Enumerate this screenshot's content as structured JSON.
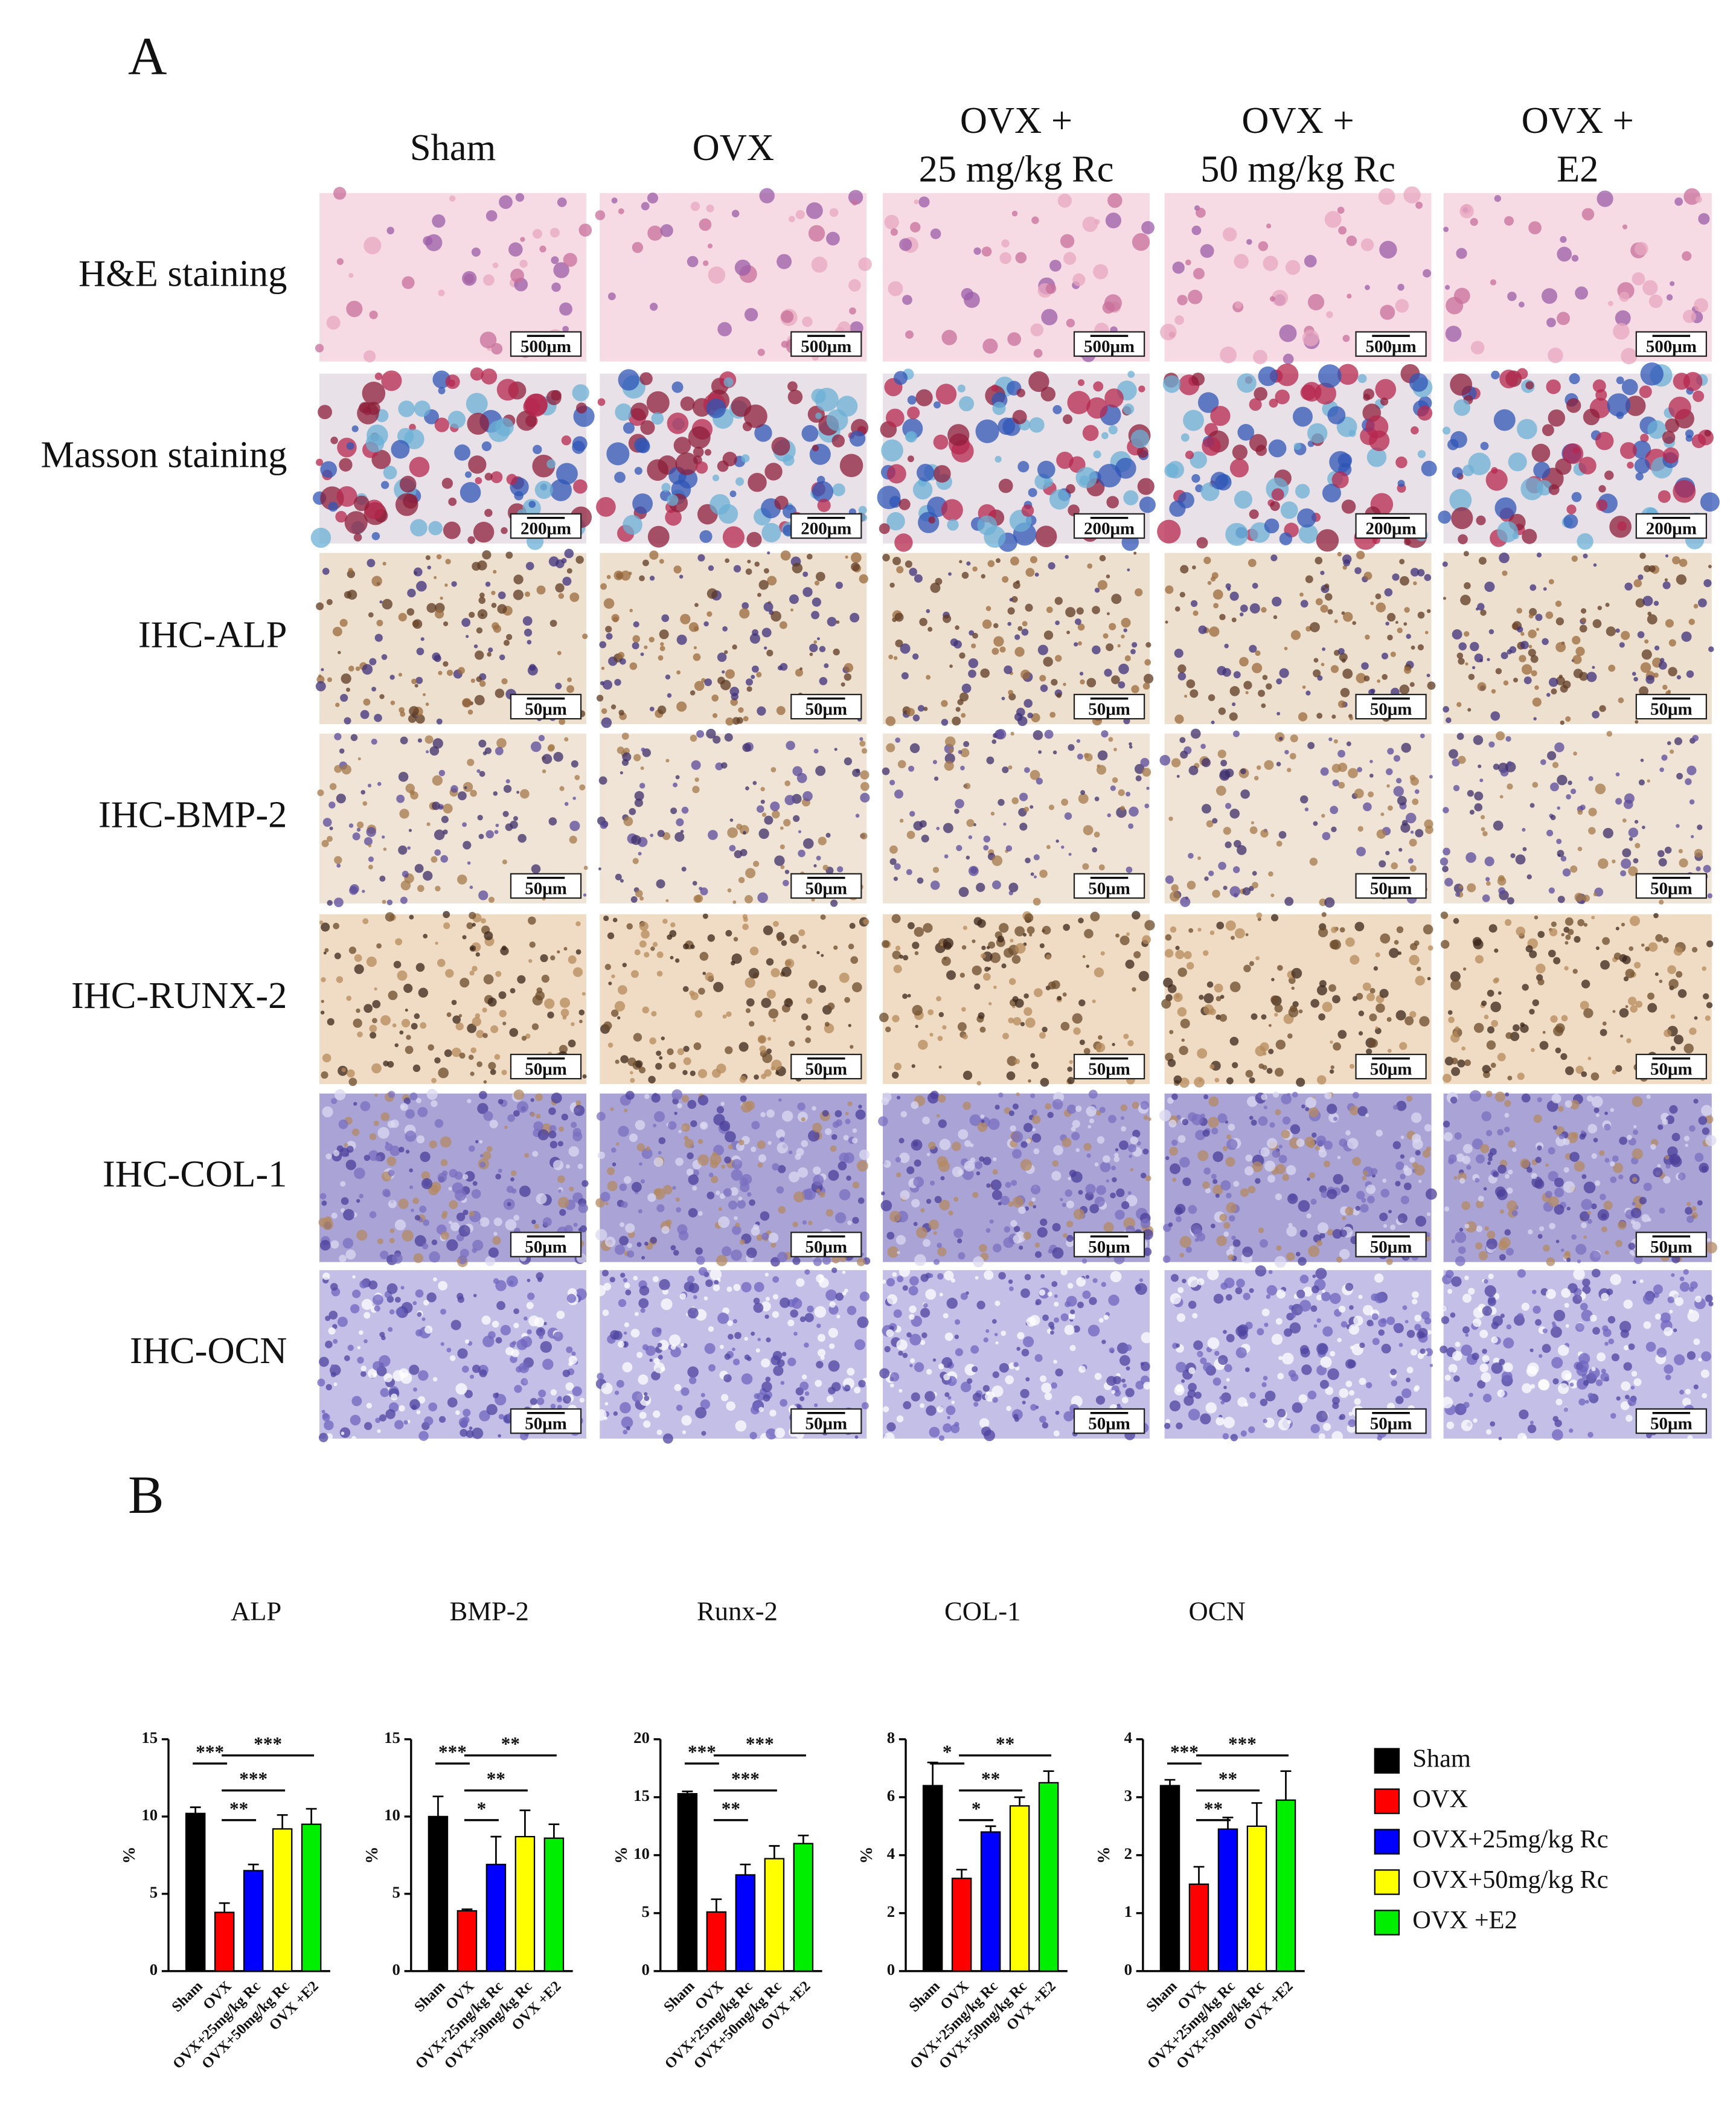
{
  "panel_a": {
    "label": "A",
    "columns": [
      [
        "Sham"
      ],
      [
        "OVX"
      ],
      [
        "OVX +",
        "25 mg/kg Rc"
      ],
      [
        "OVX +",
        "50 mg/kg Rc"
      ],
      [
        "OVX +",
        "E2"
      ]
    ],
    "rows": [
      {
        "label": "H&E staining",
        "scale_bar": "500μm"
      },
      {
        "label": "Masson staining",
        "scale_bar": "200μm"
      },
      {
        "label": "IHC-ALP",
        "scale_bar": "50μm"
      },
      {
        "label": "IHC-BMP-2",
        "scale_bar": "50μm"
      },
      {
        "label": "IHC-RUNX-2",
        "scale_bar": "50μm"
      },
      {
        "label": "IHC-COL-1",
        "scale_bar": "50μm"
      },
      {
        "label": "IHC-OCN",
        "scale_bar": "50μm"
      }
    ]
  },
  "panel_b": {
    "label": "B",
    "legend": [
      {
        "name": "Sham",
        "color": "#000000"
      },
      {
        "name": "OVX",
        "color": "#ff0000"
      },
      {
        "name": "OVX+25mg/kg Rc",
        "color": "#0000ff"
      },
      {
        "name": "OVX+50mg/kg Rc",
        "color": "#ffff00"
      },
      {
        "name": "OVX +E2",
        "color": "#00ee00"
      }
    ],
    "charts": [
      {
        "type": "bar",
        "title": "ALP",
        "y_label": "%",
        "categories": [
          "Sham",
          "OVX",
          "OVX+25mg/kg Rc",
          "OVX+50mg/kg Rc",
          "OVX +E2"
        ],
        "values": [
          10.2,
          3.8,
          6.5,
          9.2,
          9.5
        ],
        "errors": [
          0.4,
          0.6,
          0.4,
          0.9,
          1.0
        ],
        "ylim": [
          0,
          15
        ],
        "yticks": [
          0,
          5,
          10,
          15
        ],
        "significance": [
          {
            "label": "***",
            "between": [
              "Sham",
              "OVX"
            ]
          },
          {
            "label": "**",
            "between": [
              "OVX",
              "OVX+25mg/kg Rc"
            ]
          },
          {
            "label": "***",
            "between": [
              "OVX",
              "OVX+50mg/kg Rc"
            ]
          },
          {
            "label": "***",
            "between": [
              "OVX",
              "OVX +E2"
            ]
          }
        ]
      },
      {
        "type": "bar",
        "title": "BMP-2",
        "y_label": "%",
        "categories": [
          "Sham",
          "OVX",
          "OVX+25mg/kg Rc",
          "OVX+50mg/kg Rc",
          "OVX +E2"
        ],
        "values": [
          10.0,
          3.9,
          6.9,
          8.7,
          8.6
        ],
        "errors": [
          1.3,
          0.1,
          1.8,
          1.7,
          0.9
        ],
        "ylim": [
          0,
          15
        ],
        "yticks": [
          0,
          5,
          10,
          15
        ],
        "significance": [
          {
            "label": "***",
            "between": [
              "Sham",
              "OVX"
            ]
          },
          {
            "label": "*",
            "between": [
              "OVX",
              "OVX+25mg/kg Rc"
            ]
          },
          {
            "label": "**",
            "between": [
              "OVX",
              "OVX+50mg/kg Rc"
            ]
          },
          {
            "label": "**",
            "between": [
              "OVX",
              "OVX +E2"
            ]
          }
        ]
      },
      {
        "type": "bar",
        "title": "Runx-2",
        "y_label": "%",
        "categories": [
          "Sham",
          "OVX",
          "OVX+25mg/kg Rc",
          "OVX+50mg/kg Rc",
          "OVX +E2"
        ],
        "values": [
          15.3,
          5.1,
          8.3,
          9.7,
          11.0
        ],
        "errors": [
          0.2,
          1.1,
          0.9,
          1.1,
          0.7
        ],
        "ylim": [
          0,
          20
        ],
        "yticks": [
          0,
          5,
          10,
          15,
          20
        ],
        "significance": [
          {
            "label": "***",
            "between": [
              "Sham",
              "OVX"
            ]
          },
          {
            "label": "**",
            "between": [
              "OVX",
              "OVX+25mg/kg Rc"
            ]
          },
          {
            "label": "***",
            "between": [
              "OVX",
              "OVX+50mg/kg Rc"
            ]
          },
          {
            "label": "***",
            "between": [
              "OVX",
              "OVX +E2"
            ]
          }
        ]
      },
      {
        "type": "bar",
        "title": "COL-1",
        "y_label": "%",
        "categories": [
          "Sham",
          "OVX",
          "OVX+25mg/kg Rc",
          "OVX+50mg/kg Rc",
          "OVX +E2"
        ],
        "values": [
          6.4,
          3.2,
          4.8,
          5.7,
          6.5
        ],
        "errors": [
          0.8,
          0.3,
          0.2,
          0.3,
          0.4
        ],
        "ylim": [
          0,
          8
        ],
        "yticks": [
          0,
          2,
          4,
          6,
          8
        ],
        "significance": [
          {
            "label": "*",
            "between": [
              "Sham",
              "OVX"
            ]
          },
          {
            "label": "*",
            "between": [
              "OVX",
              "OVX+25mg/kg Rc"
            ]
          },
          {
            "label": "**",
            "between": [
              "OVX",
              "OVX+50mg/kg Rc"
            ]
          },
          {
            "label": "**",
            "between": [
              "OVX",
              "OVX +E2"
            ]
          }
        ]
      },
      {
        "type": "bar",
        "title": "OCN",
        "y_label": "%",
        "categories": [
          "Sham",
          "OVX",
          "OVX+25mg/kg Rc",
          "OVX+50mg/kg Rc",
          "OVX +E2"
        ],
        "values": [
          3.2,
          1.5,
          2.45,
          2.5,
          2.95
        ],
        "errors": [
          0.1,
          0.3,
          0.2,
          0.4,
          0.5
        ],
        "ylim": [
          0,
          4
        ],
        "yticks": [
          0,
          1,
          2,
          3,
          4
        ],
        "significance": [
          {
            "label": "***",
            "between": [
              "Sham",
              "OVX"
            ]
          },
          {
            "label": "**",
            "between": [
              "OVX",
              "OVX+25mg/kg Rc"
            ]
          },
          {
            "label": "**",
            "between": [
              "OVX",
              "OVX+50mg/kg Rc"
            ]
          },
          {
            "label": "***",
            "between": [
              "OVX",
              "OVX +E2"
            ]
          }
        ]
      }
    ]
  }
}
